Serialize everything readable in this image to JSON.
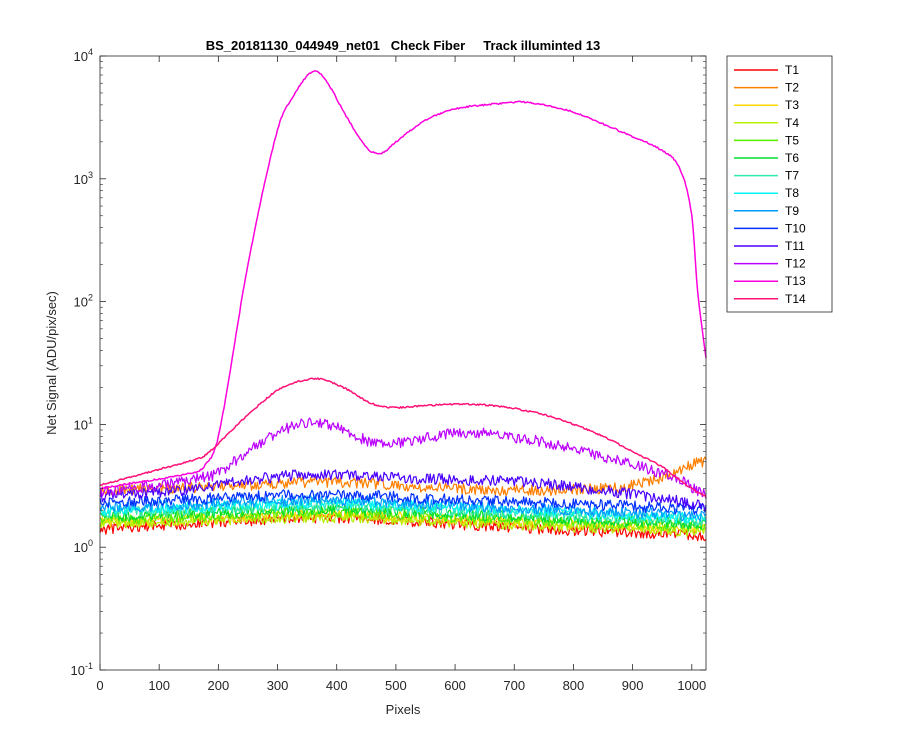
{
  "chart_data": {
    "type": "line",
    "title": "BS_20181130_044949_net01   Check Fiber     Track illuminted 13",
    "xlabel": "Pixels",
    "ylabel": "Net Signal (ADU/pix/sec)",
    "xlim": [
      0,
      1024
    ],
    "ylim": [
      0.1,
      10000
    ],
    "yscale": "log",
    "xticks": [
      0,
      100,
      200,
      300,
      400,
      500,
      600,
      700,
      800,
      900,
      1000
    ],
    "yticks": [
      {
        "value": 0.1,
        "base": "10",
        "exp": "-1"
      },
      {
        "value": 1,
        "base": "10",
        "exp": "0"
      },
      {
        "value": 10,
        "base": "10",
        "exp": "1"
      },
      {
        "value": 100,
        "base": "10",
        "exp": "2"
      },
      {
        "value": 1000,
        "base": "10",
        "exp": "3"
      },
      {
        "value": 10000,
        "base": "10",
        "exp": "4"
      }
    ],
    "grid": false,
    "legend_position": "outside-top-right",
    "x": [
      0,
      50,
      100,
      150,
      175,
      200,
      250,
      300,
      330,
      360,
      380,
      420,
      450,
      470,
      480,
      500,
      550,
      600,
      650,
      700,
      710,
      750,
      800,
      850,
      900,
      950,
      980,
      1000,
      1010,
      1024
    ],
    "series": [
      {
        "name": "T1",
        "color": "#ff0000",
        "values": [
          1.4,
          1.45,
          1.5,
          1.55,
          1.58,
          1.6,
          1.65,
          1.7,
          1.72,
          1.73,
          1.73,
          1.72,
          1.7,
          1.68,
          1.67,
          1.65,
          1.6,
          1.55,
          1.5,
          1.45,
          1.45,
          1.4,
          1.38,
          1.35,
          1.32,
          1.3,
          1.28,
          1.26,
          1.25,
          1.25
        ]
      },
      {
        "name": "T2",
        "color": "#ff7f00",
        "values": [
          2.9,
          2.95,
          3.0,
          3.05,
          3.1,
          3.15,
          3.2,
          3.3,
          3.35,
          3.4,
          3.4,
          3.35,
          3.3,
          3.25,
          3.2,
          3.15,
          3.05,
          3.0,
          2.95,
          2.9,
          2.9,
          2.9,
          2.95,
          3.0,
          3.2,
          3.7,
          4.3,
          4.7,
          4.9,
          5.0
        ]
      },
      {
        "name": "T3",
        "color": "#ffd700",
        "values": [
          1.6,
          1.62,
          1.65,
          1.68,
          1.7,
          1.72,
          1.76,
          1.8,
          1.82,
          1.83,
          1.83,
          1.82,
          1.8,
          1.78,
          1.77,
          1.75,
          1.72,
          1.68,
          1.65,
          1.6,
          1.6,
          1.57,
          1.53,
          1.5,
          1.47,
          1.44,
          1.42,
          1.4,
          1.4,
          1.4
        ]
      },
      {
        "name": "T4",
        "color": "#b8f000",
        "values": [
          1.55,
          1.58,
          1.6,
          1.63,
          1.65,
          1.67,
          1.7,
          1.72,
          1.74,
          1.75,
          1.75,
          1.74,
          1.72,
          1.7,
          1.7,
          1.68,
          1.64,
          1.6,
          1.57,
          1.53,
          1.52,
          1.5,
          1.46,
          1.43,
          1.4,
          1.38,
          1.36,
          1.35,
          1.35,
          1.35
        ]
      },
      {
        "name": "T5",
        "color": "#55ee00",
        "values": [
          1.7,
          1.72,
          1.75,
          1.78,
          1.8,
          1.82,
          1.86,
          1.9,
          1.92,
          1.93,
          1.93,
          1.92,
          1.9,
          1.88,
          1.87,
          1.85,
          1.8,
          1.76,
          1.72,
          1.68,
          1.67,
          1.64,
          1.6,
          1.56,
          1.53,
          1.5,
          1.48,
          1.46,
          1.45,
          1.45
        ]
      },
      {
        "name": "T6",
        "color": "#00dd30",
        "values": [
          1.8,
          1.82,
          1.85,
          1.88,
          1.9,
          1.93,
          1.97,
          2.0,
          2.02,
          2.03,
          2.03,
          2.02,
          2.0,
          1.98,
          1.97,
          1.95,
          1.9,
          1.86,
          1.82,
          1.78,
          1.77,
          1.74,
          1.7,
          1.66,
          1.62,
          1.6,
          1.57,
          1.55,
          1.55,
          1.55
        ]
      },
      {
        "name": "T7",
        "color": "#30e8b0",
        "values": [
          1.9,
          1.93,
          1.96,
          2.0,
          2.02,
          2.05,
          2.1,
          2.14,
          2.16,
          2.17,
          2.17,
          2.16,
          2.14,
          2.12,
          2.11,
          2.08,
          2.03,
          1.98,
          1.94,
          1.9,
          1.89,
          1.86,
          1.81,
          1.77,
          1.73,
          1.7,
          1.67,
          1.65,
          1.65,
          1.65
        ]
      },
      {
        "name": "T8",
        "color": "#00f5f5",
        "values": [
          2.0,
          2.03,
          2.07,
          2.1,
          2.13,
          2.16,
          2.2,
          2.25,
          2.27,
          2.28,
          2.28,
          2.27,
          2.25,
          2.23,
          2.22,
          2.2,
          2.14,
          2.09,
          2.04,
          2.0,
          1.99,
          1.95,
          1.9,
          1.86,
          1.82,
          1.78,
          1.75,
          1.73,
          1.72,
          1.72
        ]
      },
      {
        "name": "T9",
        "color": "#0099ff",
        "values": [
          2.1,
          2.14,
          2.18,
          2.22,
          2.25,
          2.28,
          2.33,
          2.38,
          2.4,
          2.42,
          2.42,
          2.4,
          2.38,
          2.36,
          2.35,
          2.32,
          2.26,
          2.2,
          2.15,
          2.1,
          2.09,
          2.05,
          2.0,
          1.95,
          1.9,
          1.86,
          1.83,
          1.8,
          1.8,
          1.8
        ]
      },
      {
        "name": "T10",
        "color": "#0030ff",
        "values": [
          2.3,
          2.35,
          2.4,
          2.45,
          2.48,
          2.52,
          2.58,
          2.65,
          2.68,
          2.7,
          2.7,
          2.68,
          2.65,
          2.62,
          2.6,
          2.58,
          2.5,
          2.45,
          2.4,
          2.35,
          2.34,
          2.3,
          2.25,
          2.2,
          2.15,
          2.1,
          2.07,
          2.05,
          2.05,
          2.05
        ]
      },
      {
        "name": "T11",
        "color": "#4a00ff",
        "values": [
          2.6,
          2.7,
          2.8,
          2.95,
          3.05,
          3.2,
          3.5,
          3.75,
          3.85,
          3.9,
          3.9,
          3.85,
          3.8,
          3.75,
          3.72,
          3.7,
          3.6,
          3.55,
          3.5,
          3.4,
          3.38,
          3.3,
          3.1,
          2.9,
          2.7,
          2.5,
          2.35,
          2.25,
          2.2,
          2.2
        ]
      },
      {
        "name": "T12",
        "color": "#bb00ff",
        "values": [
          2.8,
          3.0,
          3.2,
          3.5,
          3.7,
          4.0,
          6.0,
          8.5,
          9.8,
          10.4,
          10.2,
          8.6,
          7.4,
          6.9,
          6.8,
          7.0,
          7.7,
          8.5,
          8.4,
          7.8,
          7.7,
          7.2,
          6.3,
          5.4,
          4.7,
          4.0,
          3.5,
          3.1,
          2.9,
          2.7
        ]
      },
      {
        "name": "T13",
        "color": "#ff00dd",
        "values": [
          3.0,
          3.3,
          3.6,
          4.0,
          4.5,
          8.0,
          200,
          2500,
          5000,
          7500,
          6500,
          3000,
          1800,
          1600,
          1650,
          2000,
          3000,
          3700,
          4000,
          4200,
          4250,
          4000,
          3500,
          2800,
          2200,
          1700,
          1200,
          500,
          120,
          35
        ]
      },
      {
        "name": "T14",
        "color": "#ff1177",
        "values": [
          3.2,
          3.7,
          4.3,
          5.0,
          5.5,
          7.0,
          12.0,
          19.0,
          22.0,
          23.5,
          23.0,
          19.0,
          15.5,
          14.2,
          13.9,
          13.7,
          14.2,
          14.6,
          14.4,
          13.5,
          13.2,
          12.0,
          10.0,
          8.0,
          6.0,
          4.5,
          3.5,
          3.0,
          2.8,
          2.6
        ]
      }
    ]
  }
}
